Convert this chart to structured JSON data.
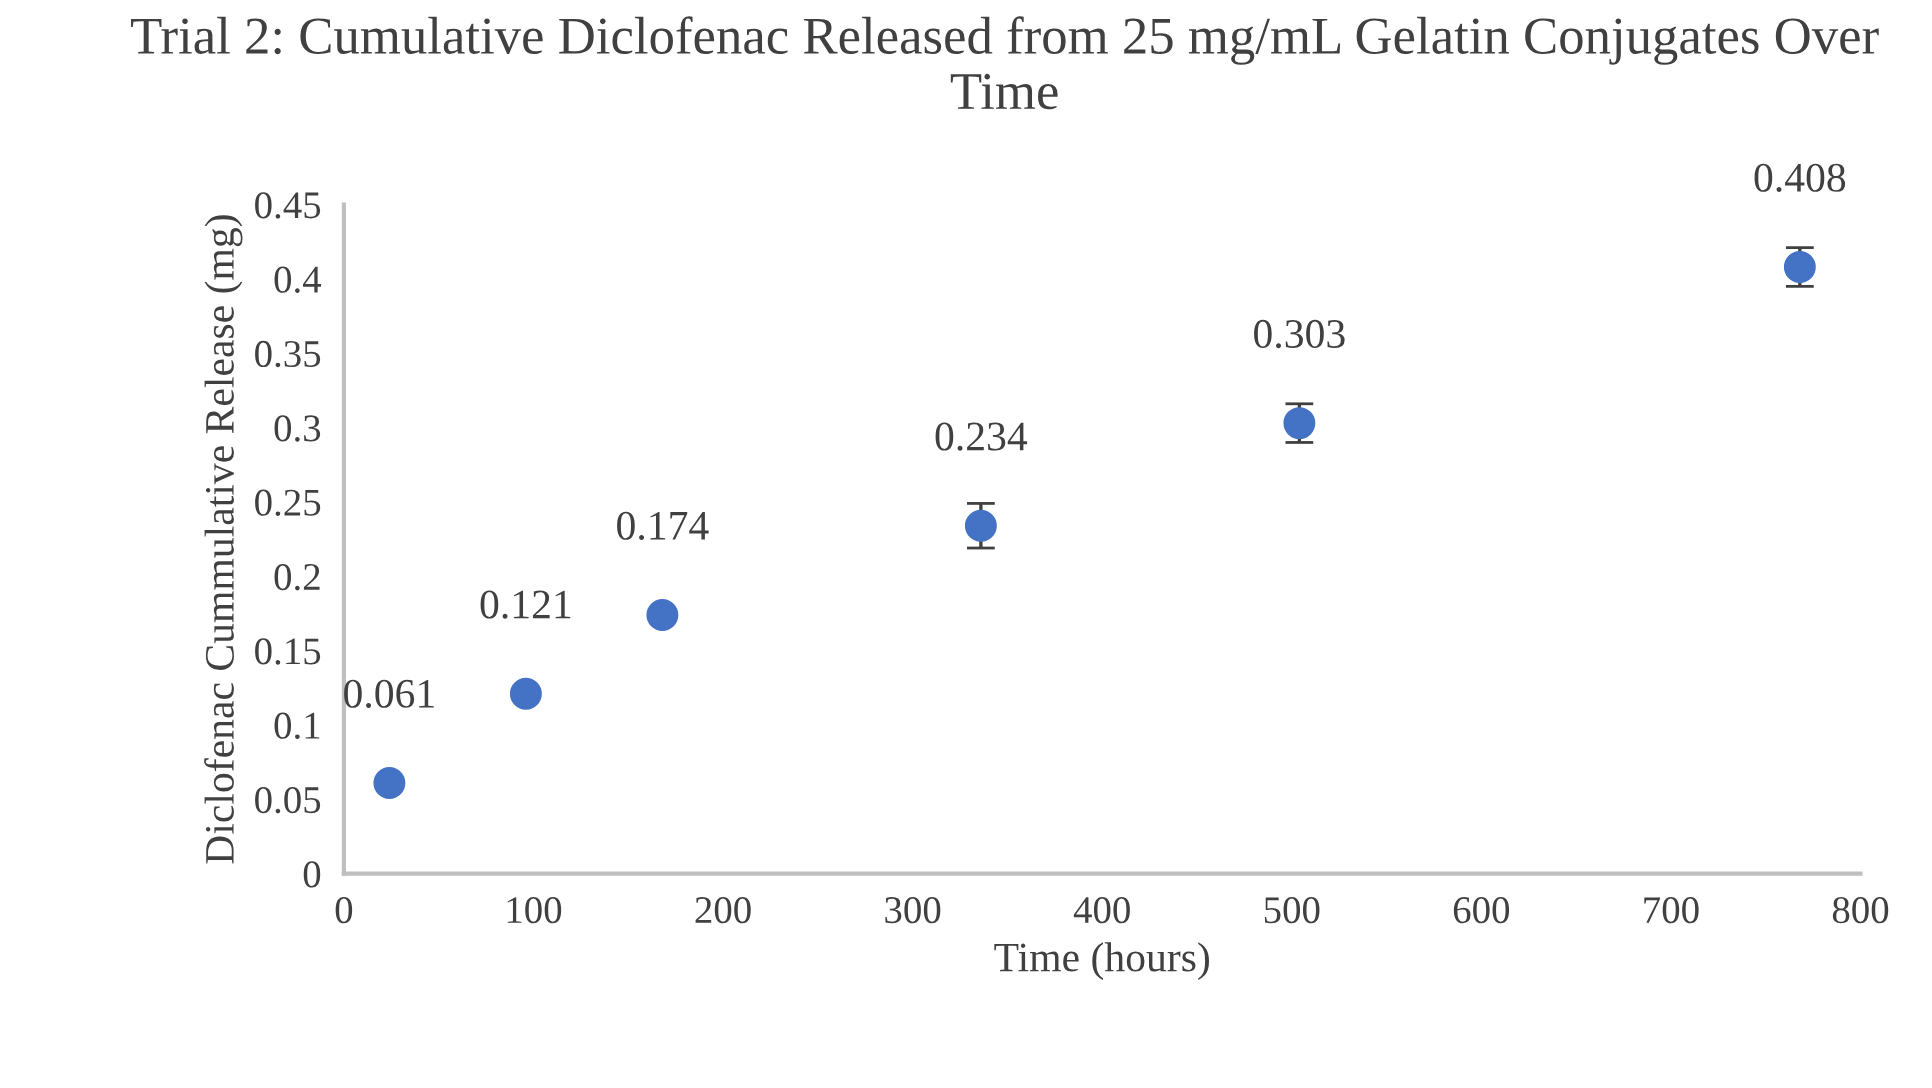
{
  "chart_data": {
    "type": "scatter",
    "title": "Trial 2: Cumulative Diclofenac Released from 25 mg/mL Gelatin Conjugates Over Time",
    "xlabel": "Time (hours)",
    "ylabel": "Diclofenac Cummulative Release (mg)",
    "x": [
      24,
      96,
      168,
      336,
      504,
      768
    ],
    "series": [
      {
        "color": "#4472c4",
        "values": [
          0.061,
          0.121,
          0.174,
          0.234,
          0.303,
          0.408
        ],
        "errors": [
          null,
          null,
          null,
          0.015,
          0.013,
          0.013
        ]
      }
    ],
    "data_labels": true,
    "marker": "circle",
    "grid": false,
    "legend": false,
    "xlim": [
      0,
      800
    ],
    "xticks": [
      0,
      100,
      200,
      300,
      400,
      500,
      600,
      700,
      800
    ],
    "ylim": [
      0,
      0.45
    ],
    "yticks": [
      0,
      0.05,
      0.1,
      0.15,
      0.2,
      0.25,
      0.3,
      0.35,
      0.4,
      0.45
    ]
  }
}
